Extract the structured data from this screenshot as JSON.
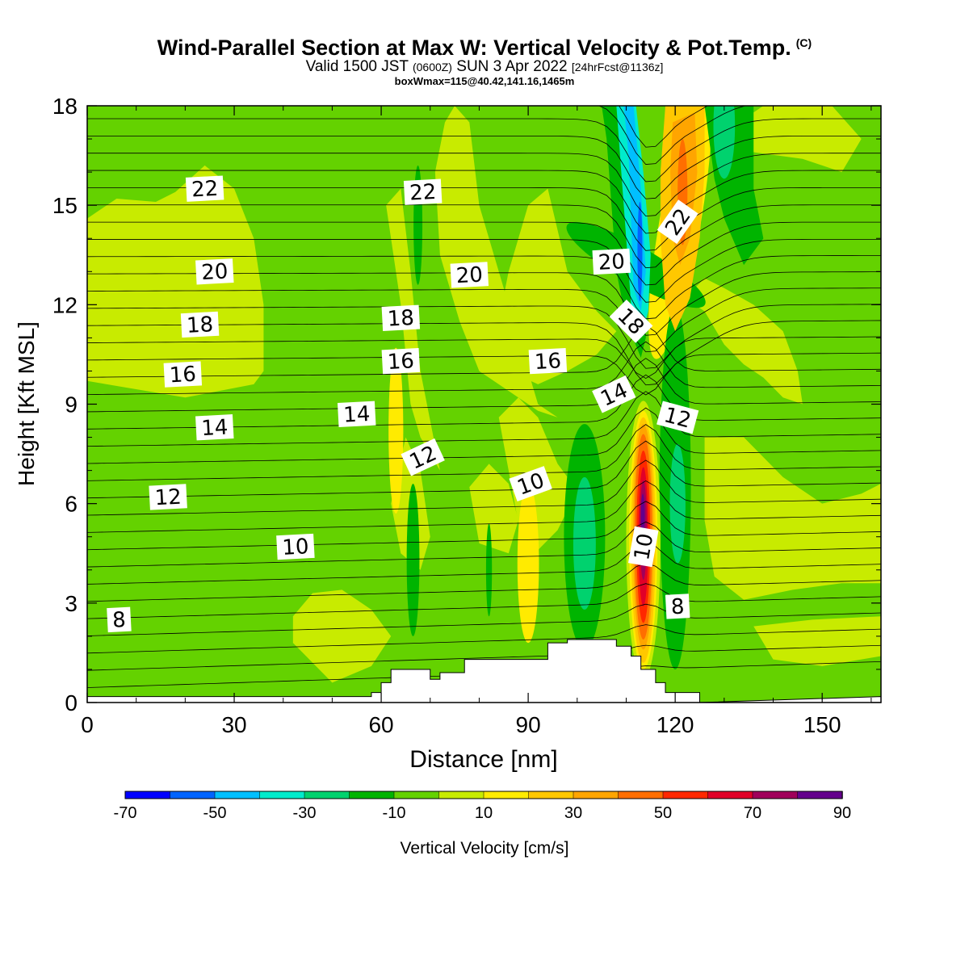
{
  "title": {
    "main": "Wind-Parallel Section at Max W: Vertical Velocity & Pot.Temp.",
    "copyright": "(C)",
    "valid_prefix": "Valid 1500 JST",
    "valid_z": "(0600Z)",
    "valid_date": "SUN 3 Apr 2022",
    "valid_fcst": "[24hrFcst@1136z]",
    "boxline": "boxWmax=115@40.42,141.16,1465m"
  },
  "colors": {
    "neg70": "#0000ff",
    "neg60": "#0064ff",
    "neg50": "#00bfff",
    "neg40": "#00ebcc",
    "neg30": "#00d26e",
    "neg20": "#00b400",
    "neg10": "#64d200",
    "pos0": "#c8eb00",
    "pos10": "#ffeb00",
    "pos20": "#ffc800",
    "pos30": "#ffa500",
    "pos40": "#ff6e00",
    "pos50": "#ff2800",
    "pos60": "#e10028",
    "pos70": "#a0005a",
    "pos80": "#64008c"
  },
  "chart_data": {
    "type": "heatmap",
    "xlabel": "Distance [nm]",
    "ylabel": "Height [Kft MSL]",
    "xlim": [
      0,
      162
    ],
    "ylim": [
      0,
      18
    ],
    "xticks": [
      "0",
      "30",
      "60",
      "90",
      "120",
      "150"
    ],
    "yticks": [
      "0",
      "3",
      "6",
      "9",
      "12",
      "15",
      "18"
    ],
    "colorbar": {
      "label": "Vertical Velocity [cm/s]",
      "ticks": [
        "-70",
        "-50",
        "-30",
        "-10",
        "10",
        "30",
        "50",
        "70",
        "90"
      ],
      "levels": [
        -70,
        -60,
        -50,
        -40,
        -30,
        -20,
        -10,
        0,
        10,
        20,
        30,
        40,
        50,
        60,
        70,
        80,
        90
      ]
    },
    "contour_field": "Potential Temperature",
    "contour_labels": [
      {
        "text": "22",
        "x": 24,
        "y": 15.5
      },
      {
        "text": "22",
        "x": 68.5,
        "y": 15.4
      },
      {
        "text": "22",
        "x": 120.5,
        "y": 14.5
      },
      {
        "text": "20",
        "x": 26,
        "y": 13.0
      },
      {
        "text": "20",
        "x": 78,
        "y": 12.9
      },
      {
        "text": "20",
        "x": 107,
        "y": 13.3
      },
      {
        "text": "18",
        "x": 23,
        "y": 11.4
      },
      {
        "text": "18",
        "x": 64,
        "y": 11.6
      },
      {
        "text": "18",
        "x": 111,
        "y": 11.5
      },
      {
        "text": "16",
        "x": 19.5,
        "y": 9.9
      },
      {
        "text": "16",
        "x": 64,
        "y": 10.3
      },
      {
        "text": "16",
        "x": 94,
        "y": 10.3
      },
      {
        "text": "14",
        "x": 26,
        "y": 8.3
      },
      {
        "text": "14",
        "x": 55,
        "y": 8.7
      },
      {
        "text": "14",
        "x": 107.5,
        "y": 9.3
      },
      {
        "text": "12",
        "x": 16.5,
        "y": 6.2
      },
      {
        "text": "12",
        "x": 68.5,
        "y": 7.4
      },
      {
        "text": "12",
        "x": 120.5,
        "y": 8.6
      },
      {
        "text": "10",
        "x": 42.5,
        "y": 4.7
      },
      {
        "text": "10",
        "x": 90.5,
        "y": 6.6
      },
      {
        "text": "10",
        "x": 113.5,
        "y": 4.7
      },
      {
        "text": "8",
        "x": 6.5,
        "y": 2.5
      },
      {
        "text": "8",
        "x": 120.5,
        "y": 2.9
      }
    ],
    "w_features": [
      {
        "name": "updraft-core",
        "center_x": 113.5,
        "center_y": 5.2,
        "peak_w": 90
      },
      {
        "name": "upper-downdraft",
        "center_x": 113,
        "center_y": 13.5,
        "min_w": -70
      },
      {
        "name": "upper-updraft",
        "center_x": 122,
        "center_y": 15,
        "peak_w": 40
      }
    ],
    "terrain": [
      [
        58,
        0.3
      ],
      [
        60,
        0.6
      ],
      [
        62,
        1.0
      ],
      [
        68,
        1.0
      ],
      [
        70,
        0.7
      ],
      [
        72,
        0.9
      ],
      [
        77,
        1.3
      ],
      [
        84,
        1.3
      ],
      [
        92,
        1.3
      ],
      [
        94,
        1.8
      ],
      [
        98,
        1.9
      ],
      [
        106,
        1.9
      ],
      [
        108,
        1.7
      ],
      [
        111,
        1.4
      ],
      [
        113,
        1.0
      ],
      [
        116,
        0.6
      ],
      [
        118,
        0.3
      ],
      [
        124,
        0.3
      ],
      [
        125,
        0.0
      ]
    ]
  }
}
